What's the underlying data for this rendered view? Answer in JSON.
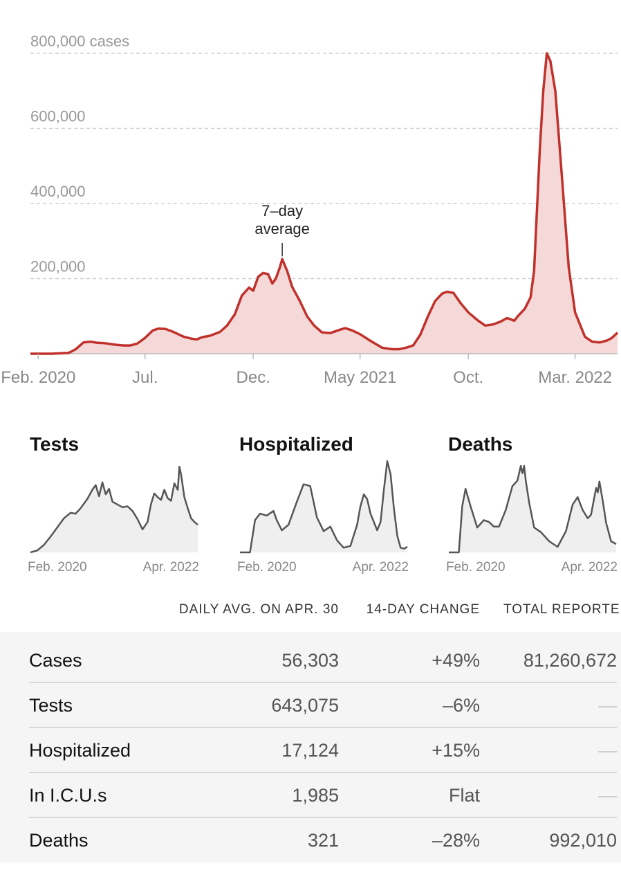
{
  "chart_data": [
    {
      "id": "cases",
      "type": "area",
      "y_ticks": [
        {
          "value": 200000,
          "label": "200,000"
        },
        {
          "value": 400000,
          "label": "400,000"
        },
        {
          "value": 600000,
          "label": "600,000"
        },
        {
          "value": 800000,
          "label": "800,000 cases"
        }
      ],
      "ylim": [
        0,
        800000
      ],
      "xlim": [
        "2020-01-21",
        "2022-04-30"
      ],
      "x_ticks": [
        {
          "value": "2020-02-01",
          "label": "Feb. 2020"
        },
        {
          "value": "2020-07-01",
          "label": "Jul."
        },
        {
          "value": "2020-12-01",
          "label": "Dec."
        },
        {
          "value": "2021-05-01",
          "label": "May 2021"
        },
        {
          "value": "2021-10-01",
          "label": "Oct."
        },
        {
          "value": "2022-03-01",
          "label": "Mar. 2022"
        }
      ],
      "annotation": {
        "line1": "7–day",
        "line2": "average",
        "x": "2021-01-11",
        "y": 252000
      },
      "series": [
        {
          "color": "#c0312b",
          "fill": "#f5d9d9",
          "x": [
            "2020-01-21",
            "2020-02-20",
            "2020-03-15",
            "2020-03-25",
            "2020-04-05",
            "2020-04-15",
            "2020-04-25",
            "2020-05-05",
            "2020-05-20",
            "2020-06-01",
            "2020-06-10",
            "2020-06-20",
            "2020-07-01",
            "2020-07-12",
            "2020-07-20",
            "2020-07-30",
            "2020-08-10",
            "2020-08-25",
            "2020-09-05",
            "2020-09-12",
            "2020-09-20",
            "2020-10-01",
            "2020-10-15",
            "2020-10-25",
            "2020-11-05",
            "2020-11-15",
            "2020-11-25",
            "2020-12-01",
            "2020-12-08",
            "2020-12-15",
            "2020-12-22",
            "2020-12-28",
            "2021-01-02",
            "2021-01-08",
            "2021-01-11",
            "2021-01-18",
            "2021-01-25",
            "2021-02-05",
            "2021-02-15",
            "2021-02-25",
            "2021-03-08",
            "2021-03-20",
            "2021-04-01",
            "2021-04-10",
            "2021-04-20",
            "2021-05-01",
            "2021-05-15",
            "2021-06-01",
            "2021-06-15",
            "2021-06-25",
            "2021-07-05",
            "2021-07-15",
            "2021-07-25",
            "2021-08-05",
            "2021-08-15",
            "2021-08-25",
            "2021-09-01",
            "2021-09-10",
            "2021-09-20",
            "2021-10-01",
            "2021-10-15",
            "2021-10-25",
            "2021-11-05",
            "2021-11-15",
            "2021-11-25",
            "2021-12-05",
            "2021-12-10",
            "2021-12-20",
            "2021-12-28",
            "2022-01-02",
            "2022-01-06",
            "2022-01-10",
            "2022-01-15",
            "2022-01-20",
            "2022-01-25",
            "2022-02-01",
            "2022-02-10",
            "2022-02-20",
            "2022-03-01",
            "2022-03-15",
            "2022-03-25",
            "2022-04-05",
            "2022-04-15",
            "2022-04-22",
            "2022-04-30"
          ],
          "y": [
            0,
            0,
            2000,
            12000,
            30000,
            32000,
            29000,
            28000,
            24000,
            22000,
            22000,
            27000,
            42000,
            62000,
            67000,
            66000,
            58000,
            45000,
            40000,
            38000,
            44000,
            48000,
            58000,
            75000,
            105000,
            155000,
            176000,
            168000,
            205000,
            215000,
            212000,
            187000,
            200000,
            232000,
            252000,
            220000,
            178000,
            140000,
            100000,
            75000,
            57000,
            55000,
            63000,
            68000,
            62000,
            52000,
            35000,
            16000,
            12000,
            12000,
            16000,
            22000,
            50000,
            100000,
            140000,
            160000,
            165000,
            162000,
            135000,
            110000,
            88000,
            75000,
            78000,
            85000,
            95000,
            88000,
            100000,
            120000,
            150000,
            220000,
            380000,
            540000,
            700000,
            800000,
            780000,
            700000,
            480000,
            230000,
            110000,
            45000,
            32000,
            30000,
            35000,
            42000,
            56000
          ]
        }
      ]
    },
    {
      "id": "tests",
      "type": "area",
      "title": "Tests",
      "x_ticks": [
        {
          "value": 0,
          "label": "Feb. 2020"
        },
        {
          "value": 1,
          "label": "Apr. 2022"
        }
      ],
      "series": [
        {
          "color": "#555555",
          "fill": "#efefef",
          "x": [
            0.0,
            0.04,
            0.08,
            0.12,
            0.16,
            0.2,
            0.24,
            0.27,
            0.3,
            0.34,
            0.37,
            0.39,
            0.41,
            0.43,
            0.45,
            0.47,
            0.49,
            0.52,
            0.55,
            0.58,
            0.61,
            0.64,
            0.67,
            0.7,
            0.72,
            0.74,
            0.76,
            0.78,
            0.8,
            0.82,
            0.84,
            0.86,
            0.88,
            0.89,
            0.9,
            0.92,
            0.94,
            0.96,
            0.98,
            1.0
          ],
          "y": [
            0.0,
            0.02,
            0.08,
            0.17,
            0.27,
            0.37,
            0.43,
            0.42,
            0.48,
            0.58,
            0.68,
            0.73,
            0.61,
            0.76,
            0.63,
            0.69,
            0.55,
            0.52,
            0.49,
            0.5,
            0.45,
            0.36,
            0.25,
            0.33,
            0.52,
            0.64,
            0.6,
            0.57,
            0.68,
            0.59,
            0.56,
            0.75,
            0.68,
            0.93,
            0.85,
            0.6,
            0.48,
            0.37,
            0.33,
            0.3
          ]
        }
      ]
    },
    {
      "id": "hospitalized",
      "type": "area",
      "title": "Hospitalized",
      "x_ticks": [
        {
          "value": 0,
          "label": "Feb. 2020"
        },
        {
          "value": 1,
          "label": "Apr. 2022"
        }
      ],
      "series": [
        {
          "color": "#555555",
          "fill": "#efefef",
          "x": [
            0.0,
            0.06,
            0.09,
            0.12,
            0.16,
            0.2,
            0.22,
            0.25,
            0.29,
            0.34,
            0.38,
            0.42,
            0.46,
            0.5,
            0.54,
            0.58,
            0.62,
            0.66,
            0.7,
            0.72,
            0.74,
            0.76,
            0.78,
            0.82,
            0.84,
            0.86,
            0.88,
            0.9,
            0.92,
            0.94,
            0.96,
            0.98,
            1.0
          ],
          "y": [
            0.0,
            0.0,
            0.35,
            0.42,
            0.4,
            0.45,
            0.35,
            0.24,
            0.3,
            0.55,
            0.74,
            0.72,
            0.38,
            0.23,
            0.28,
            0.13,
            0.05,
            0.07,
            0.3,
            0.5,
            0.63,
            0.58,
            0.42,
            0.24,
            0.33,
            0.68,
            0.99,
            0.85,
            0.48,
            0.18,
            0.05,
            0.04,
            0.06
          ]
        }
      ]
    },
    {
      "id": "deaths",
      "type": "area",
      "title": "Deaths",
      "x_ticks": [
        {
          "value": 0,
          "label": "Feb. 2020"
        },
        {
          "value": 1,
          "label": "Apr. 2022"
        }
      ],
      "series": [
        {
          "color": "#555555",
          "fill": "#efefef",
          "x": [
            0.0,
            0.06,
            0.08,
            0.1,
            0.13,
            0.17,
            0.21,
            0.24,
            0.27,
            0.3,
            0.34,
            0.38,
            0.41,
            0.43,
            0.44,
            0.45,
            0.46,
            0.48,
            0.51,
            0.55,
            0.6,
            0.65,
            0.7,
            0.74,
            0.77,
            0.8,
            0.83,
            0.85,
            0.88,
            0.89,
            0.9,
            0.92,
            0.94,
            0.97,
            1.0
          ],
          "y": [
            0.0,
            0.0,
            0.5,
            0.69,
            0.5,
            0.27,
            0.35,
            0.33,
            0.28,
            0.28,
            0.46,
            0.72,
            0.78,
            0.94,
            0.86,
            0.94,
            0.78,
            0.54,
            0.27,
            0.22,
            0.12,
            0.06,
            0.23,
            0.52,
            0.6,
            0.46,
            0.37,
            0.41,
            0.7,
            0.65,
            0.77,
            0.56,
            0.32,
            0.12,
            0.09
          ]
        }
      ]
    }
  ],
  "table": {
    "headers": [
      "DAILY AVG. ON APR. 30",
      "14-DAY CHANGE",
      "TOTAL REPORTE"
    ],
    "rows": [
      {
        "label": "Cases",
        "avg": "56,303",
        "change": "+49%",
        "total": "81,260,672"
      },
      {
        "label": "Tests",
        "avg": "643,075",
        "change": "–6%",
        "total": "—"
      },
      {
        "label": "Hospitalized",
        "avg": "17,124",
        "change": "+15%",
        "total": "—"
      },
      {
        "label": "In I.C.U.s",
        "avg": "1,985",
        "change": "Flat",
        "total": "—"
      },
      {
        "label": "Deaths",
        "avg": "321",
        "change": "–28%",
        "total": "992,010"
      }
    ]
  }
}
